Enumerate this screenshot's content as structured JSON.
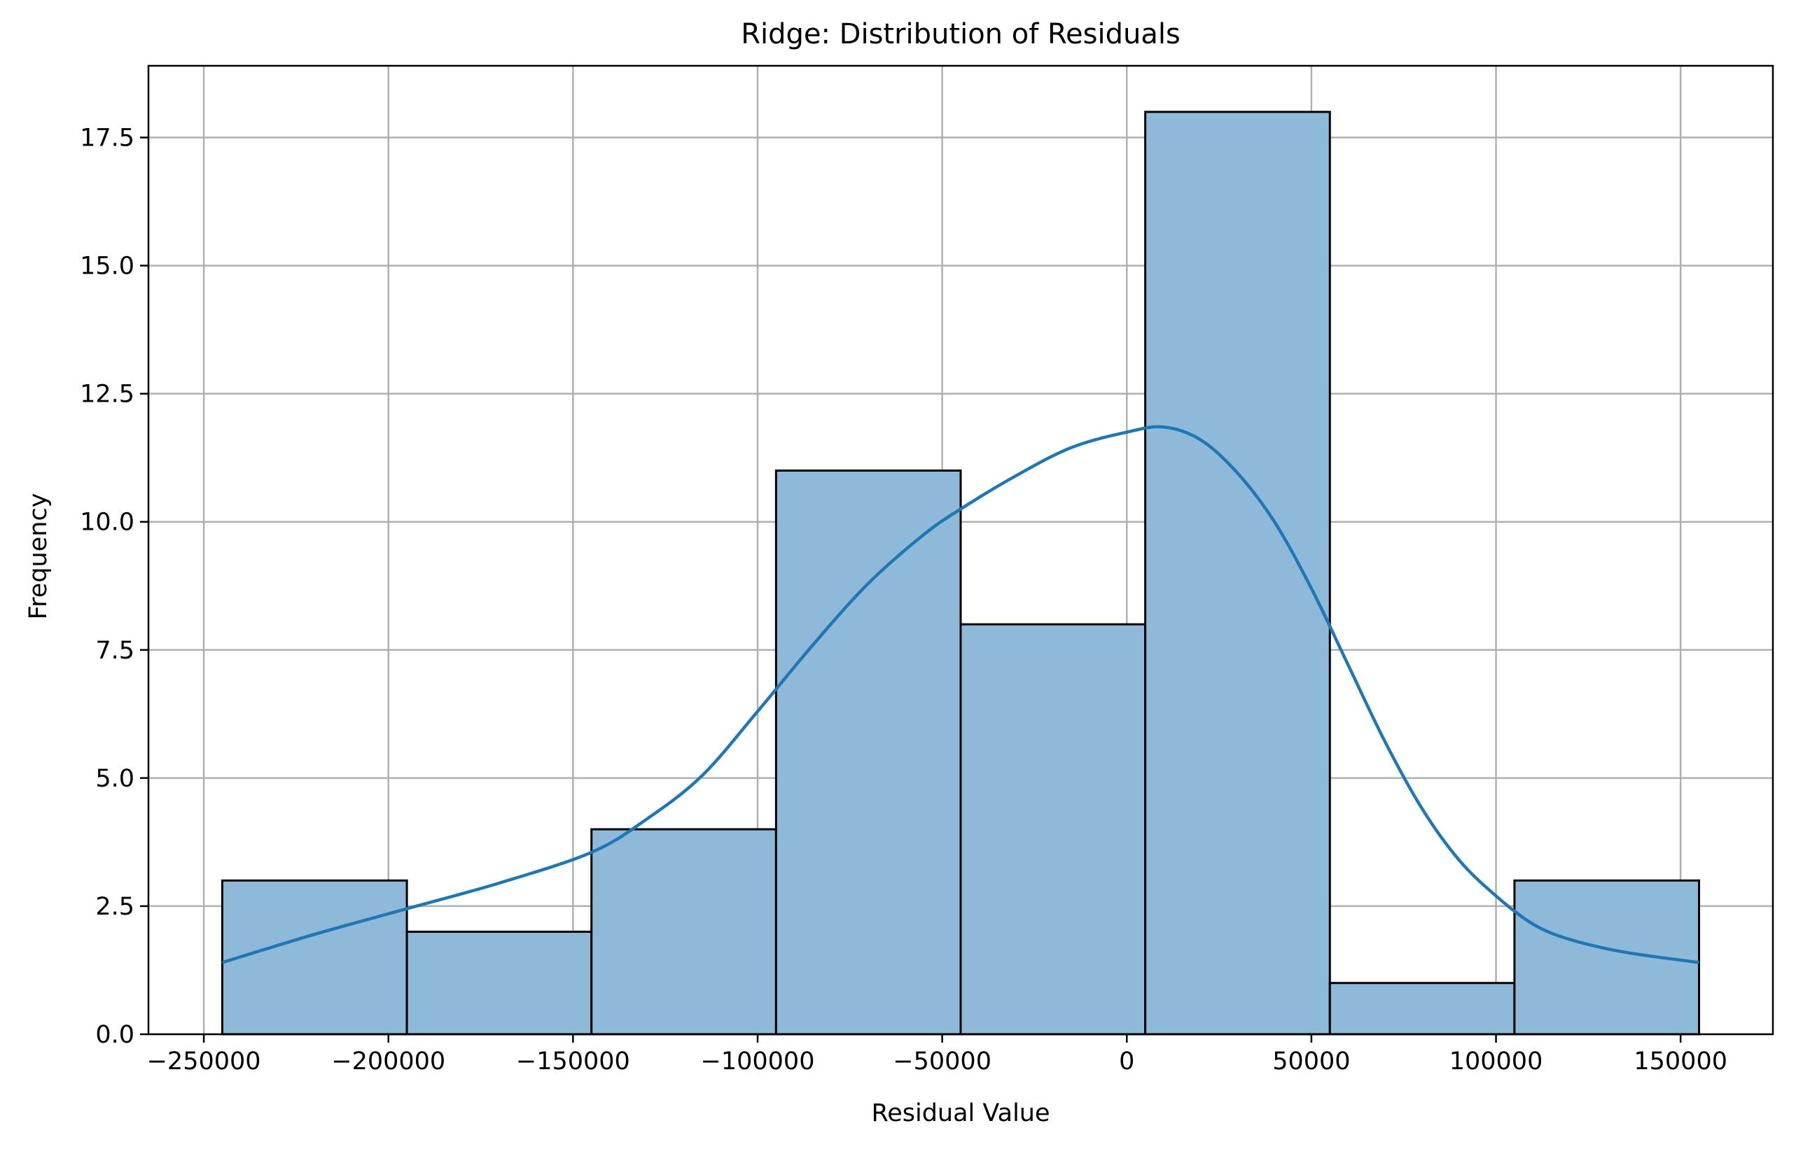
{
  "chart_data": {
    "type": "bar",
    "title": "Ridge: Distribution of Residuals",
    "xlabel": "Residual Value",
    "ylabel": "Frequency",
    "bin_edges": [
      -245000,
      -195000,
      -145000,
      -95000,
      -45000,
      5000,
      55000,
      105000,
      155000
    ],
    "values": [
      3,
      2,
      4,
      11,
      8,
      18,
      1,
      3
    ],
    "xlim": [
      -265000,
      175000
    ],
    "ylim": [
      0,
      18.9
    ],
    "xticks": [
      -250000,
      -200000,
      -150000,
      -100000,
      -50000,
      0,
      50000,
      100000,
      150000
    ],
    "xtick_labels": [
      "−250000",
      "−200000",
      "−150000",
      "−100000",
      "−50000",
      "0",
      "50000",
      "100000",
      "150000"
    ],
    "yticks": [
      0,
      2.5,
      5,
      7.5,
      10,
      12.5,
      15,
      17.5
    ],
    "ytick_labels": [
      "0.0",
      "2.5",
      "5.0",
      "7.5",
      "10.0",
      "12.5",
      "15.0",
      "17.5"
    ],
    "kde": {
      "x": [
        -245000,
        -220000,
        -195000,
        -170000,
        -145000,
        -130000,
        -115000,
        -100000,
        -85000,
        -70000,
        -55000,
        -45000,
        -30000,
        -15000,
        0,
        10000,
        20000,
        30000,
        40000,
        50000,
        60000,
        70000,
        80000,
        90000,
        100000,
        110000,
        120000,
        135000,
        155000
      ],
      "y": [
        1.4,
        1.95,
        2.45,
        2.95,
        3.55,
        4.2,
        5.05,
        6.3,
        7.6,
        8.8,
        9.75,
        10.25,
        10.9,
        11.45,
        11.75,
        11.85,
        11.6,
        10.95,
        10.0,
        8.7,
        7.2,
        5.7,
        4.4,
        3.4,
        2.7,
        2.15,
        1.85,
        1.6,
        1.4
      ]
    },
    "grid": true,
    "colors": {
      "bar_fill": "#8fb9d9",
      "bar_edge": "#000000",
      "kde_line": "#1f77b4",
      "grid": "#b0b0b0"
    }
  }
}
